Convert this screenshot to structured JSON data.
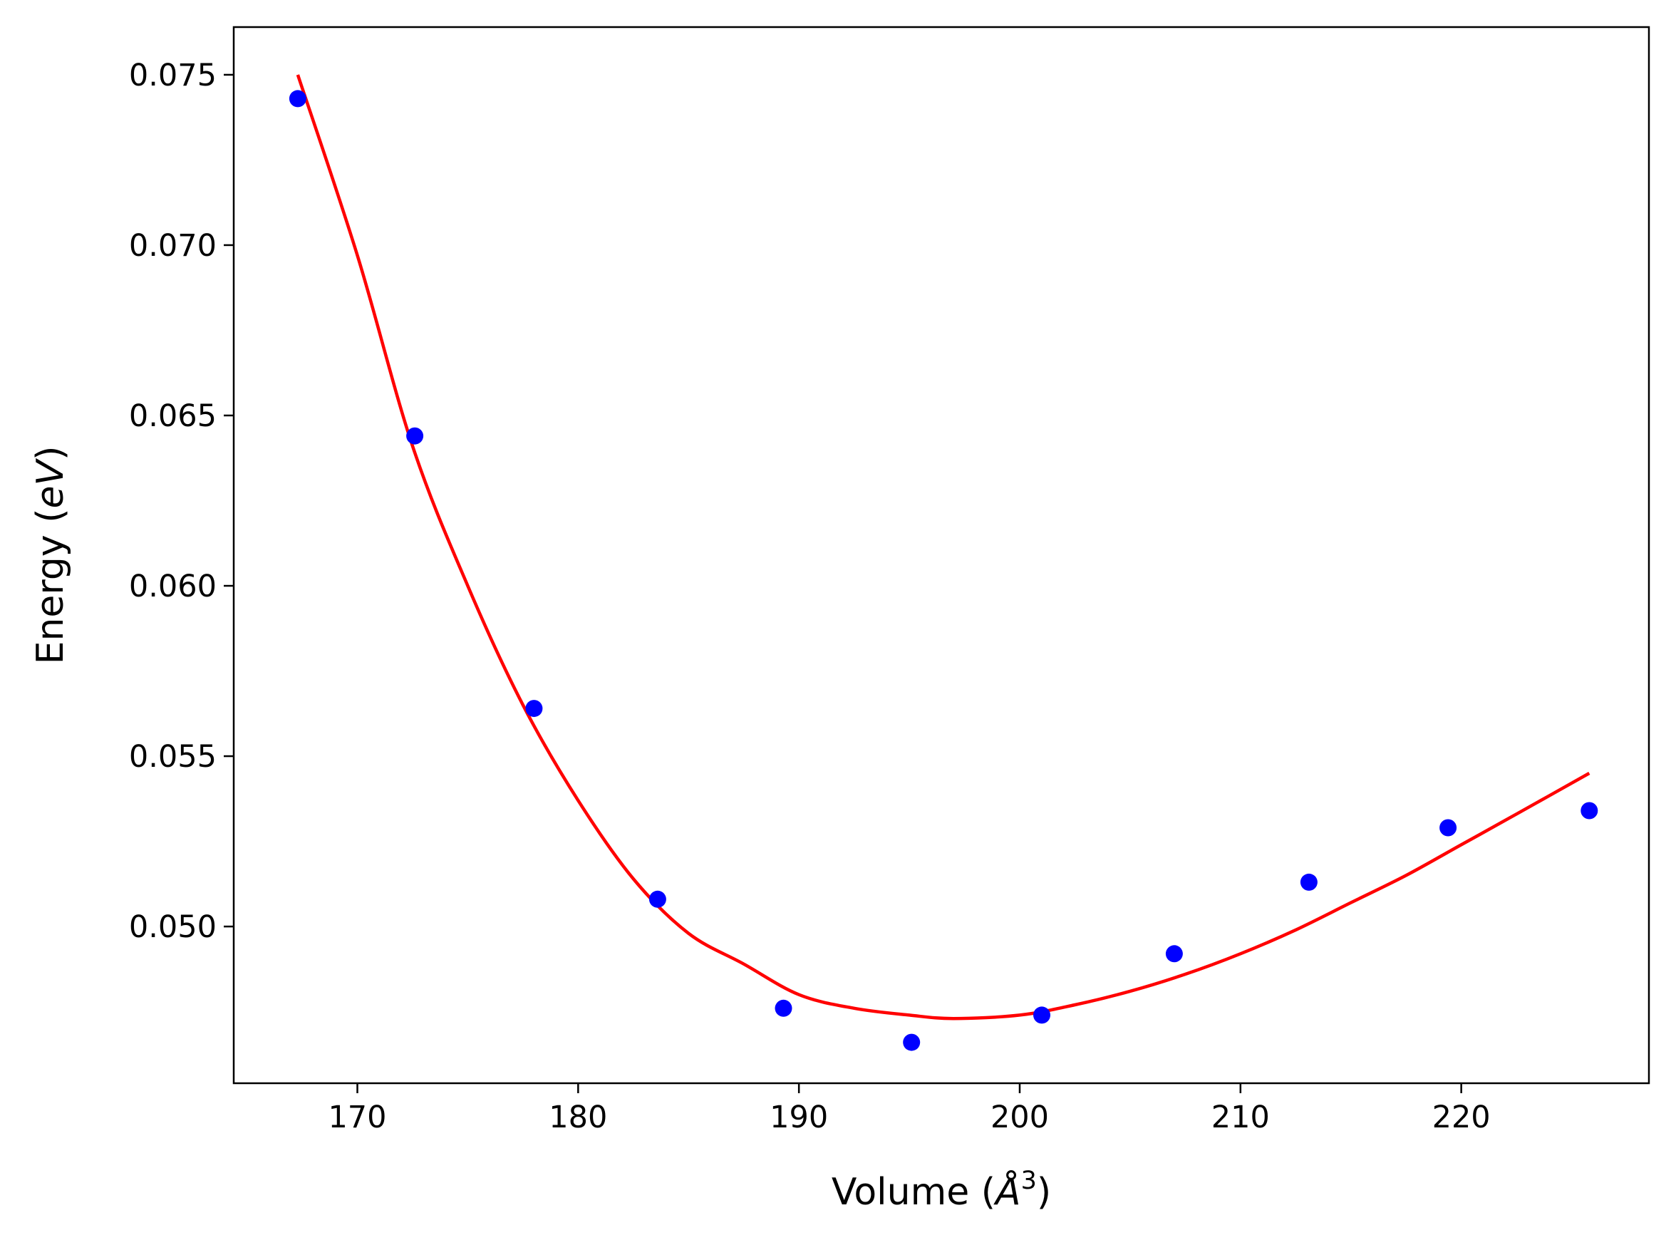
{
  "chart_data": {
    "type": "scatter",
    "title": "",
    "xlabel": "Volume (Å³)",
    "xlabel_parts": {
      "prefix": "Volume (",
      "unit": "Å",
      "sup": "3",
      "suffix": ")"
    },
    "ylabel": "Energy (eV)",
    "ylabel_parts": {
      "prefix": "Energy (",
      "unit": "eV",
      "suffix": ")"
    },
    "xlim": [
      164.4,
      228.5
    ],
    "ylim": [
      0.0454,
      0.0764
    ],
    "xticks": [
      170,
      180,
      190,
      200,
      210,
      220
    ],
    "xtick_labels": [
      "170",
      "180",
      "190",
      "200",
      "210",
      "220"
    ],
    "yticks": [
      0.05,
      0.055,
      0.06,
      0.065,
      0.07,
      0.075
    ],
    "ytick_labels": [
      "0.050",
      "0.055",
      "0.060",
      "0.065",
      "0.070",
      "0.075"
    ],
    "grid": false,
    "legend": "none",
    "series": [
      {
        "type": "scatter",
        "color": "#0000ff",
        "x": [
          167.3,
          172.6,
          178.0,
          183.6,
          189.3,
          195.1,
          201.0,
          207.0,
          213.1,
          219.4,
          225.8
        ],
        "y": [
          0.0743,
          0.0644,
          0.0564,
          0.0508,
          0.0476,
          0.0466,
          0.0474,
          0.0492,
          0.0513,
          0.0529,
          0.0534
        ]
      },
      {
        "type": "line",
        "color": "#ff0000",
        "x": [
          167.3,
          170.0,
          172.5,
          175.0,
          177.5,
          180.0,
          182.5,
          185.0,
          187.5,
          190.0,
          192.5,
          195.0,
          197.0,
          200.0,
          202.5,
          205.0,
          207.5,
          210.0,
          212.5,
          215.0,
          217.5,
          220.0,
          222.5,
          225.8
        ],
        "y": [
          0.075,
          0.0697,
          0.0641,
          0.06,
          0.0565,
          0.0537,
          0.0514,
          0.0498,
          0.0489,
          0.048,
          0.0476,
          0.0474,
          0.0473,
          0.0474,
          0.0477,
          0.0481,
          0.0486,
          0.0492,
          0.0499,
          0.0507,
          0.0515,
          0.0524,
          0.0533,
          0.0545
        ]
      }
    ]
  }
}
